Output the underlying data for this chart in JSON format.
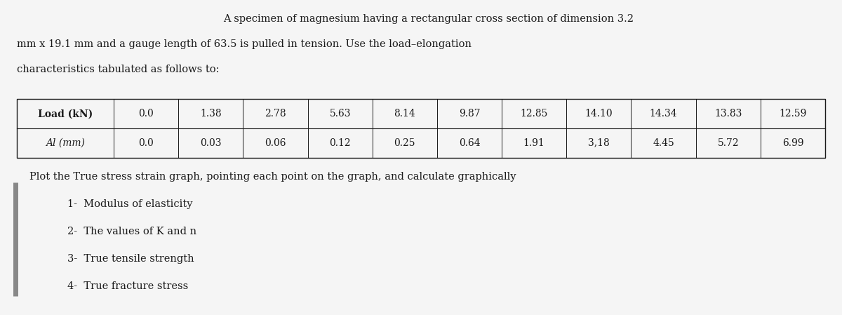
{
  "title_line1": "A specimen of magnesium having a rectangular cross section of dimension 3.2",
  "title_line2": "mm x 19.1 mm and a gauge length of 63.5 is pulled in tension. Use the load–elongation",
  "title_line3": "characteristics tabulated as follows to:",
  "load_header": "Load (kN)",
  "dl_header": "Al (mm)",
  "load_values": [
    "0.0",
    "1.38",
    "2.78",
    "5.63",
    "8.14",
    "9.87",
    "12.85",
    "14.10",
    "14.34",
    "13.83",
    "12.59"
  ],
  "dl_values": [
    "0.0",
    "0.03",
    "0.06",
    "0.12",
    "0.25",
    "0.64",
    "1.91",
    "3,18",
    "4.45",
    "5.72",
    "6.99"
  ],
  "instructions_line0": "Plot the True stress strain graph, pointing each point on the graph, and calculate graphically",
  "instructions": [
    "1-  Modulus of elasticity",
    "2-  The values of K and n",
    "3-  True tensile strength",
    "4-  True fracture stress"
  ],
  "bg_color": "#f5f5f5",
  "text_color": "#1a1a1a",
  "font_size_main": 10.5,
  "font_size_table": 10.0,
  "left_bar_color": "#888888"
}
